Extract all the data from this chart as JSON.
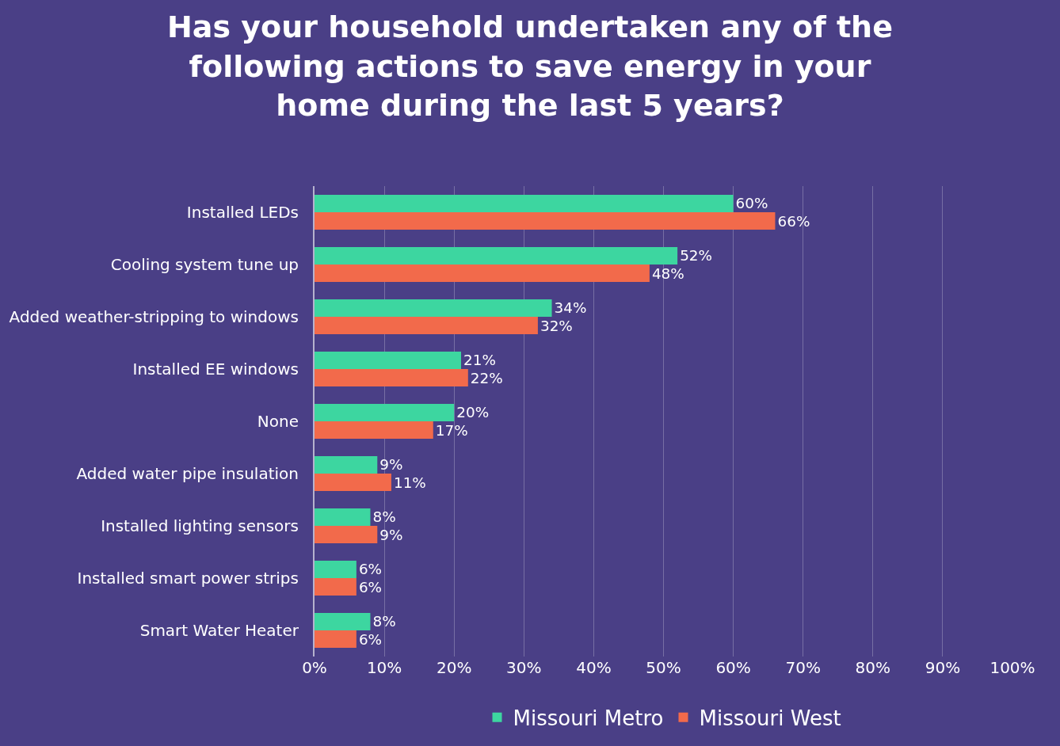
{
  "chart_data": {
    "type": "bar",
    "orientation": "horizontal",
    "title": "Has your household undertaken any of the following actions to save energy in your home during the last 5 years?",
    "categories": [
      "Installed LEDs",
      "Cooling system tune up",
      "Added weather-stripping to windows",
      "Installed EE windows",
      "None",
      "Added water pipe insulation",
      "Installed lighting sensors",
      "Installed smart power strips",
      "Smart Water Heater"
    ],
    "series": [
      {
        "name": "Missouri Metro",
        "color": "#3dd6a0",
        "values": [
          60,
          52,
          34,
          21,
          20,
          9,
          8,
          6,
          8
        ],
        "value_labels": [
          "60%",
          "52%",
          "34%",
          "21%",
          "20%",
          "9%",
          "8%",
          "6%",
          "8%"
        ]
      },
      {
        "name": "Missouri West",
        "color": "#f26a4b",
        "values": [
          66,
          48,
          32,
          22,
          17,
          11,
          9,
          6,
          6
        ],
        "value_labels": [
          "66%",
          "48%",
          "32%",
          "22%",
          "17%",
          "11%",
          "9%",
          "6%",
          "6%"
        ]
      }
    ],
    "xlim": [
      0,
      100
    ],
    "xticks": [
      {
        "value": 0,
        "label": "0%"
      },
      {
        "value": 10,
        "label": "10%"
      },
      {
        "value": 20,
        "label": "20%"
      },
      {
        "value": 30,
        "label": "30%"
      },
      {
        "value": 40,
        "label": "40%"
      },
      {
        "value": 50,
        "label": "50%"
      },
      {
        "value": 60,
        "label": "60%"
      },
      {
        "value": 70,
        "label": "70%"
      },
      {
        "value": 80,
        "label": "80%"
      },
      {
        "value": 90,
        "label": "90%"
      },
      {
        "value": 100,
        "label": "100%"
      }
    ],
    "grid": "x",
    "legend": "bottom"
  }
}
